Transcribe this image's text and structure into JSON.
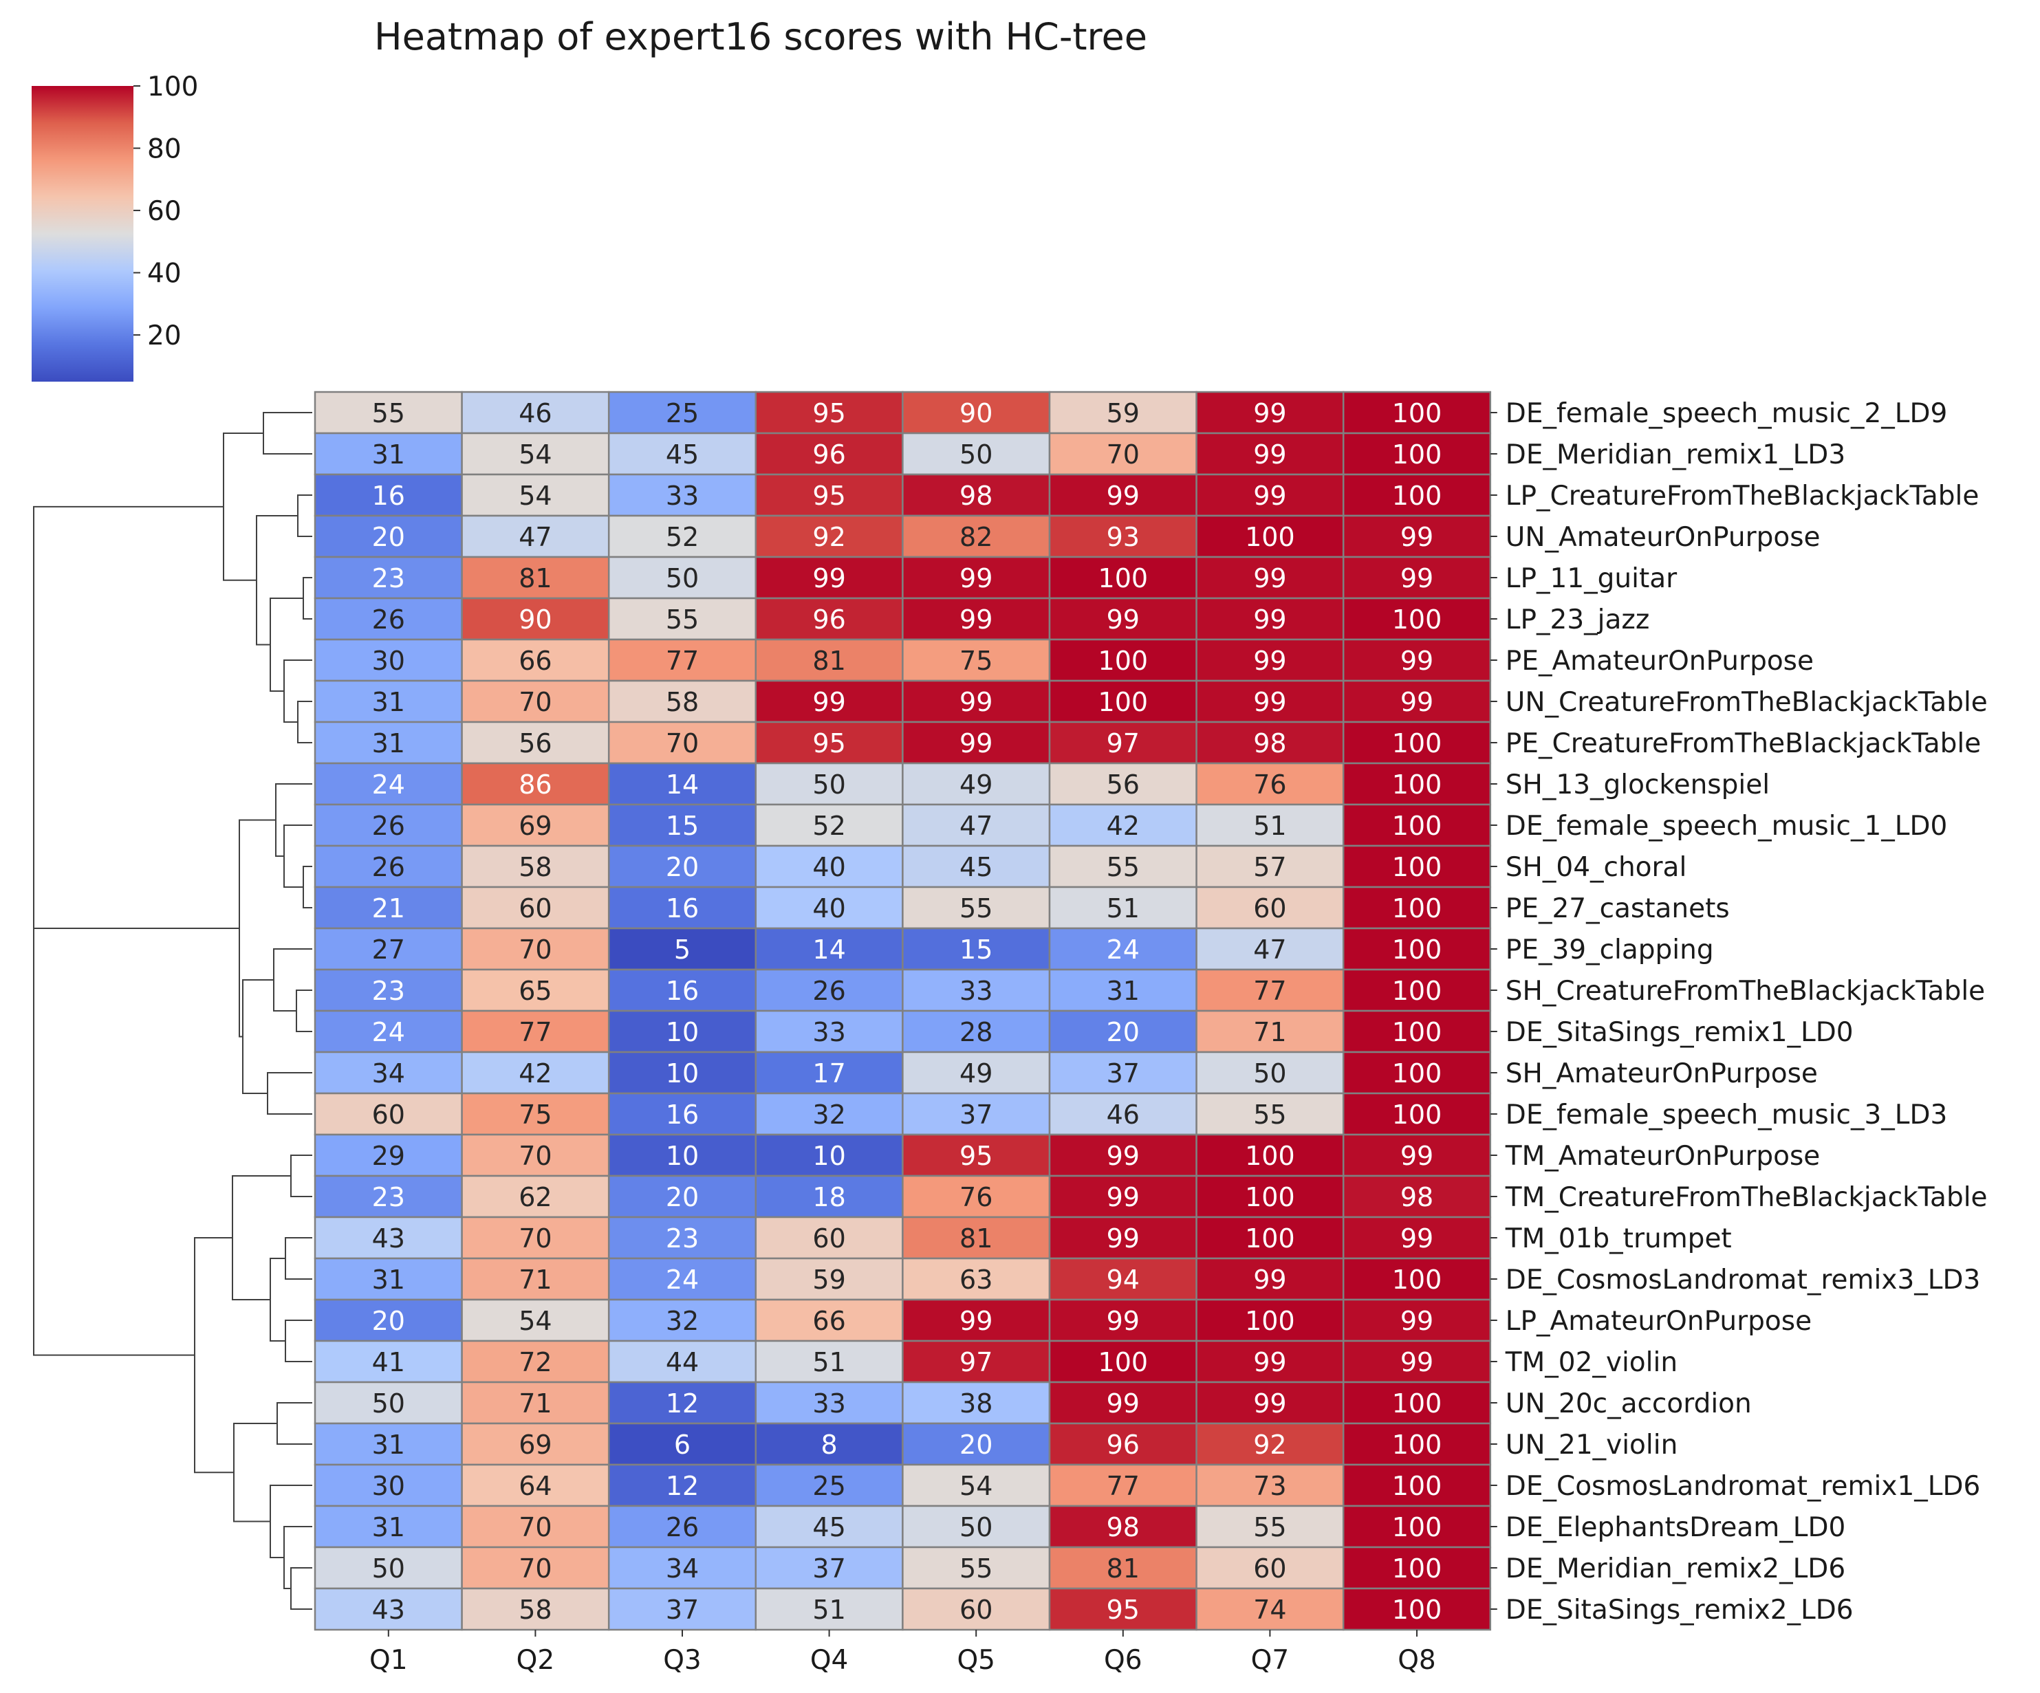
{
  "chart_data": {
    "type": "heatmap",
    "title": "Heatmap of expert16 scores with HC-tree",
    "colormap": "coolwarm",
    "colorbar": {
      "ticks": [
        20,
        40,
        60,
        80,
        100
      ],
      "range": [
        5,
        100
      ],
      "placement": "top-left"
    },
    "annotations": "cell values shown",
    "columns": [
      "Q1",
      "Q2",
      "Q3",
      "Q4",
      "Q5",
      "Q6",
      "Q7",
      "Q8"
    ],
    "rows": [
      "DE_female_speech_music_2_LD9",
      "DE_Meridian_remix1_LD3",
      "LP_CreatureFromTheBlackjackTable",
      "UN_AmateurOnPurpose",
      "LP_11_guitar",
      "LP_23_jazz",
      "PE_AmateurOnPurpose",
      "UN_CreatureFromTheBlackjackTable",
      "PE_CreatureFromTheBlackjackTable",
      "SH_13_glockenspiel",
      "DE_female_speech_music_1_LD0",
      "SH_04_choral",
      "PE_27_castanets",
      "PE_39_clapping",
      "SH_CreatureFromTheBlackjackTable",
      "DE_SitaSings_remix1_LD0",
      "SH_AmateurOnPurpose",
      "DE_female_speech_music_3_LD3",
      "TM_AmateurOnPurpose",
      "TM_CreatureFromTheBlackjackTable",
      "TM_01b_trumpet",
      "DE_CosmosLandromat_remix3_LD3",
      "LP_AmateurOnPurpose",
      "TM_02_violin",
      "UN_20c_accordion",
      "UN_21_violin",
      "DE_CosmosLandromat_remix1_LD6",
      "DE_ElephantsDream_LD0",
      "DE_Meridian_remix2_LD6",
      "DE_SitaSings_remix2_LD6"
    ],
    "values": [
      [
        55,
        46,
        25,
        95,
        90,
        59,
        99,
        100
      ],
      [
        31,
        54,
        45,
        96,
        50,
        70,
        99,
        100
      ],
      [
        16,
        54,
        33,
        95,
        98,
        99,
        99,
        100
      ],
      [
        20,
        47,
        52,
        92,
        82,
        93,
        100,
        99
      ],
      [
        23,
        81,
        50,
        99,
        99,
        100,
        99,
        99
      ],
      [
        26,
        90,
        55,
        96,
        99,
        99,
        99,
        100
      ],
      [
        30,
        66,
        77,
        81,
        75,
        100,
        99,
        99
      ],
      [
        31,
        70,
        58,
        99,
        99,
        100,
        99,
        99
      ],
      [
        31,
        56,
        70,
        95,
        99,
        97,
        98,
        100
      ],
      [
        24,
        86,
        14,
        50,
        49,
        56,
        76,
        100
      ],
      [
        26,
        69,
        15,
        52,
        47,
        42,
        51,
        100
      ],
      [
        26,
        58,
        20,
        40,
        45,
        55,
        57,
        100
      ],
      [
        21,
        60,
        16,
        40,
        55,
        51,
        60,
        100
      ],
      [
        27,
        70,
        5,
        14,
        15,
        24,
        47,
        100
      ],
      [
        23,
        65,
        16,
        26,
        33,
        31,
        77,
        100
      ],
      [
        24,
        77,
        10,
        33,
        28,
        20,
        71,
        100
      ],
      [
        34,
        42,
        10,
        17,
        49,
        37,
        50,
        100
      ],
      [
        60,
        75,
        16,
        32,
        37,
        46,
        55,
        100
      ],
      [
        29,
        70,
        10,
        10,
        95,
        99,
        100,
        99
      ],
      [
        23,
        62,
        20,
        18,
        76,
        99,
        100,
        98
      ],
      [
        43,
        70,
        23,
        60,
        81,
        99,
        100,
        99
      ],
      [
        31,
        71,
        24,
        59,
        63,
        94,
        99,
        100
      ],
      [
        20,
        54,
        32,
        66,
        99,
        99,
        100,
        99
      ],
      [
        41,
        72,
        44,
        51,
        97,
        100,
        99,
        99
      ],
      [
        50,
        71,
        12,
        33,
        38,
        99,
        99,
        100
      ],
      [
        31,
        69,
        6,
        8,
        20,
        96,
        92,
        100
      ],
      [
        30,
        64,
        12,
        25,
        54,
        77,
        73,
        100
      ],
      [
        31,
        70,
        26,
        45,
        50,
        98,
        55,
        100
      ],
      [
        50,
        70,
        34,
        37,
        55,
        81,
        60,
        100
      ],
      [
        43,
        58,
        37,
        51,
        60,
        95,
        74,
        100
      ]
    ]
  }
}
